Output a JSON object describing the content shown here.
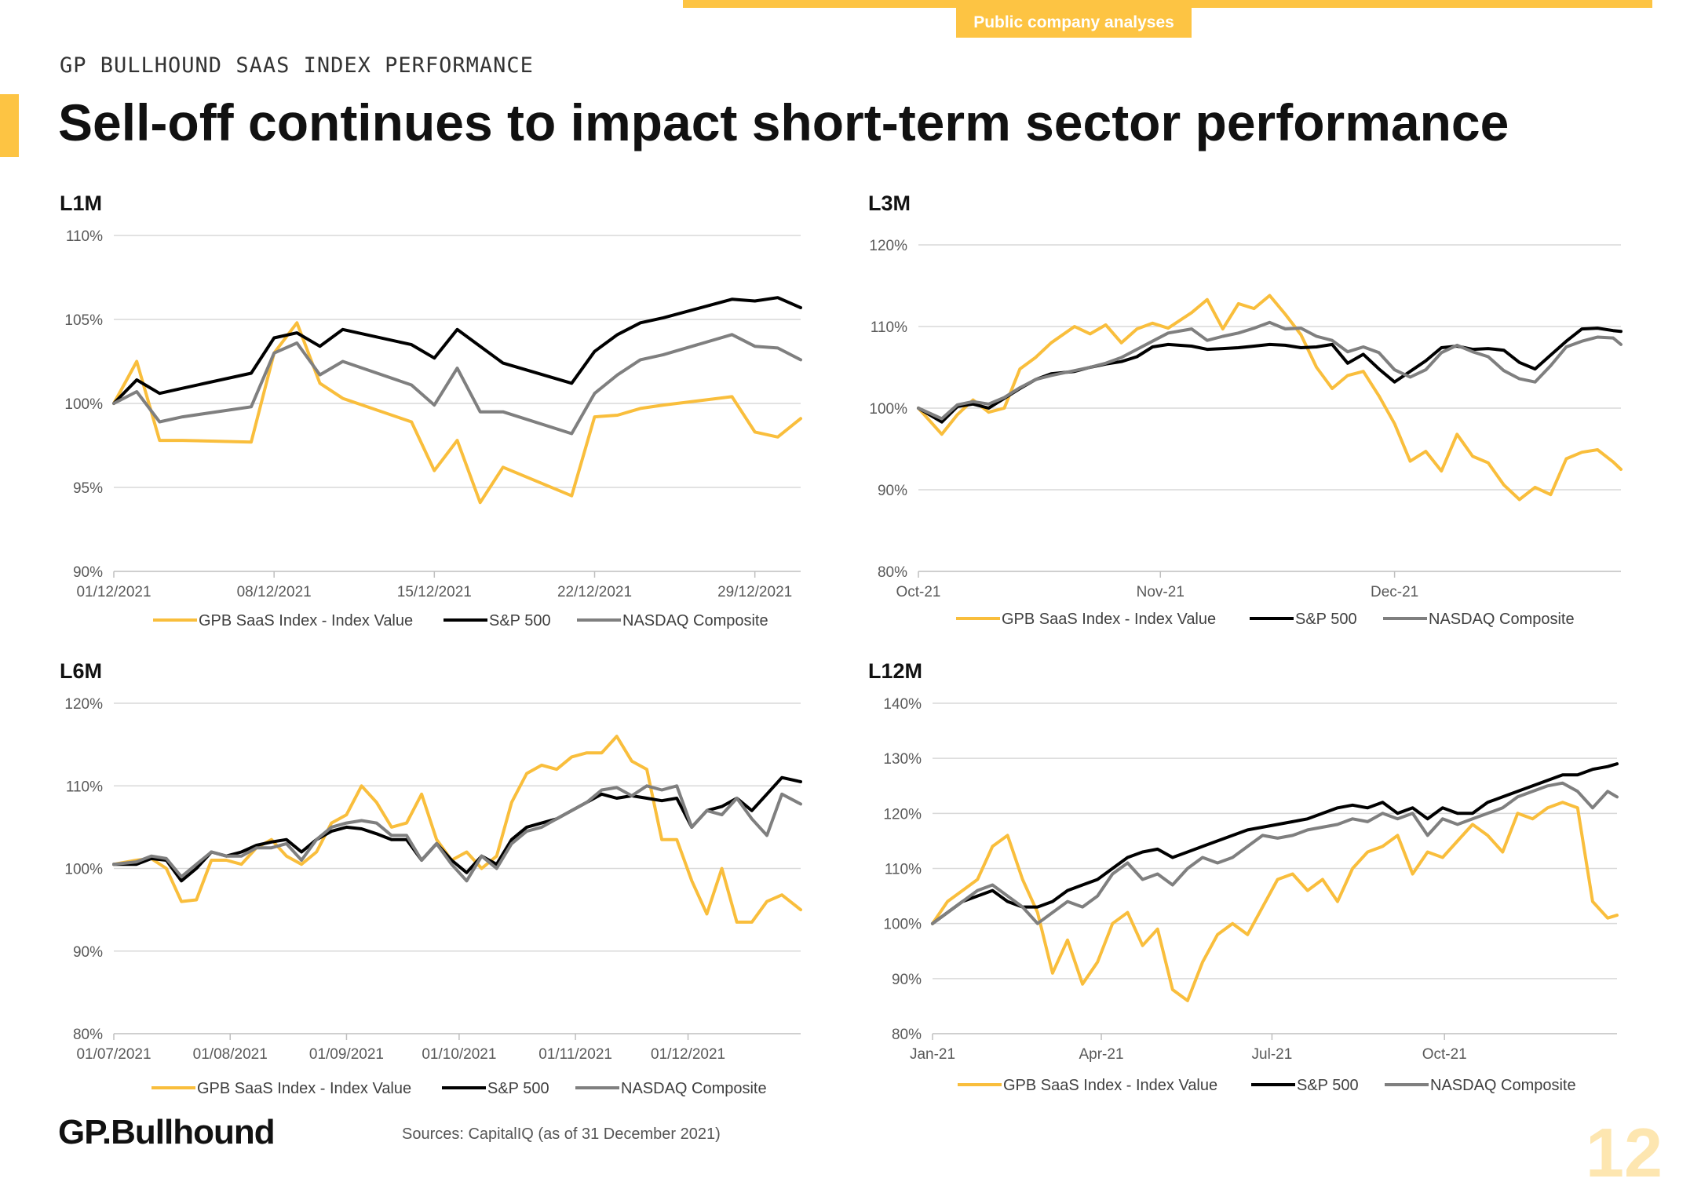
{
  "header": {
    "tag": "Public company analyses",
    "supertitle": "GP BULLHOUND SAAS INDEX PERFORMANCE",
    "title": "Sell-off continues to impact short-term sector performance"
  },
  "colors": {
    "accent": "#FDC443",
    "gpb": "#F9BE3C",
    "sp500": "#000000",
    "nasdaq": "#7F7F7F",
    "grid": "#D9D9D9"
  },
  "legend": [
    "GPB SaaS Index - Index Value",
    "S&P 500",
    "NASDAQ Composite"
  ],
  "chart_data": [
    {
      "label": "L1M",
      "type": "line",
      "ylim": [
        90,
        110
      ],
      "yticks": [
        90,
        95,
        100,
        105,
        110
      ],
      "y_suffix": "%",
      "xlim": [
        0,
        30
      ],
      "xticks": [
        {
          "x": 0,
          "label": "01/12/2021"
        },
        {
          "x": 7,
          "label": "08/12/2021"
        },
        {
          "x": 14,
          "label": "15/12/2021"
        },
        {
          "x": 21,
          "label": "22/12/2021"
        },
        {
          "x": 28,
          "label": "29/12/2021"
        }
      ],
      "x": [
        0,
        1,
        2,
        3,
        6,
        7,
        8,
        9,
        10,
        13,
        14,
        15,
        16,
        17,
        20,
        21,
        22,
        23,
        24,
        27,
        28,
        29,
        30
      ],
      "series": [
        {
          "name": "GPB SaaS Index - Index Value",
          "values": [
            100,
            102.5,
            97.8,
            97.8,
            97.7,
            103,
            104.8,
            101.2,
            100.3,
            98.9,
            96,
            97.8,
            94.1,
            96.2,
            94.5,
            99.2,
            99.3,
            99.7,
            99.9,
            100.4,
            98.3,
            98,
            99.1
          ]
        },
        {
          "name": "S&P 500",
          "values": [
            100,
            101.4,
            100.6,
            100.9,
            101.8,
            103.9,
            104.2,
            103.4,
            104.4,
            103.5,
            102.7,
            104.4,
            103.4,
            102.4,
            101.2,
            103.1,
            104.1,
            104.8,
            105.1,
            106.2,
            106.1,
            106.3,
            105.7
          ]
        },
        {
          "name": "NASDAQ Composite",
          "values": [
            100,
            100.7,
            98.9,
            99.2,
            99.8,
            103,
            103.6,
            101.7,
            102.5,
            101.1,
            99.9,
            102.1,
            99.5,
            99.5,
            98.2,
            100.6,
            101.7,
            102.6,
            102.9,
            104.1,
            103.4,
            103.3,
            102.6
          ]
        }
      ]
    },
    {
      "label": "L3M",
      "type": "line",
      "ylim": [
        80,
        120
      ],
      "yticks": [
        80,
        90,
        100,
        110,
        120
      ],
      "y_suffix": "%",
      "xlim": [
        0,
        90
      ],
      "xticks": [
        {
          "x": 0,
          "label": "Oct-21"
        },
        {
          "x": 31,
          "label": "Nov-21"
        },
        {
          "x": 61,
          "label": "Dec-21"
        }
      ],
      "x": [
        0,
        3,
        5,
        7,
        9,
        11,
        13,
        15,
        17,
        20,
        22,
        24,
        26,
        28,
        30,
        32,
        35,
        37,
        39,
        41,
        43,
        45,
        47,
        49,
        51,
        53,
        55,
        57,
        59,
        61,
        63,
        65,
        67,
        69,
        71,
        73,
        75,
        77,
        79,
        81,
        83,
        85,
        87,
        89,
        90
      ],
      "series": [
        {
          "name": "GPB SaaS Index - Index Value",
          "values": [
            100,
            96.8,
            99.2,
            101,
            99.5,
            100,
            104.8,
            106.2,
            108,
            110,
            109.1,
            110.2,
            108,
            109.7,
            110.4,
            109.8,
            111.7,
            113.3,
            109.7,
            112.8,
            112.2,
            113.8,
            111.5,
            109,
            105,
            102.4,
            104,
            104.5,
            101.5,
            98.1,
            93.5,
            94.7,
            92.3,
            96.8,
            94.1,
            93.3,
            90.6,
            88.8,
            90.3,
            89.4,
            93.8,
            94.6,
            94.9,
            93.4,
            92.5
          ]
        },
        {
          "name": "S&P 500",
          "values": [
            100,
            98.3,
            100.2,
            100.5,
            100,
            101.2,
            102.4,
            103.5,
            104.2,
            104.5,
            105,
            105.4,
            105.7,
            106.3,
            107.5,
            107.8,
            107.6,
            107.2,
            107.3,
            107.4,
            107.6,
            107.8,
            107.7,
            107.4,
            107.5,
            107.8,
            105.5,
            106.6,
            104.8,
            103.2,
            104.5,
            105.8,
            107.4,
            107.6,
            107.2,
            107.3,
            107.1,
            105.6,
            104.8,
            106.5,
            108.2,
            109.7,
            109.8,
            109.5,
            109.4
          ]
        },
        {
          "name": "NASDAQ Composite",
          "values": [
            100,
            98.7,
            100.4,
            100.8,
            100.5,
            101.3,
            102.5,
            103.5,
            104,
            104.6,
            105,
            105.5,
            106.2,
            107.2,
            108.2,
            109.2,
            109.7,
            108.3,
            108.8,
            109.2,
            109.8,
            110.5,
            109.7,
            109.8,
            108.8,
            108.3,
            106.9,
            107.5,
            106.8,
            104.7,
            103.8,
            104.7,
            106.8,
            107.7,
            106.9,
            106.3,
            104.6,
            103.6,
            103.2,
            105.2,
            107.5,
            108.2,
            108.7,
            108.6,
            107.8
          ]
        }
      ]
    },
    {
      "label": "L6M",
      "type": "line",
      "ylim": [
        80,
        120
      ],
      "yticks": [
        80,
        90,
        100,
        110,
        120
      ],
      "y_suffix": "%",
      "xlim": [
        0,
        183
      ],
      "xticks": [
        {
          "x": 0,
          "label": "01/07/2021"
        },
        {
          "x": 31,
          "label": "01/08/2021"
        },
        {
          "x": 62,
          "label": "01/09/2021"
        },
        {
          "x": 92,
          "label": "01/10/2021"
        },
        {
          "x": 123,
          "label": "01/11/2021"
        },
        {
          "x": 153,
          "label": "01/12/2021"
        }
      ],
      "x": [
        0,
        6,
        10,
        14,
        18,
        22,
        26,
        30,
        34,
        38,
        42,
        46,
        50,
        54,
        58,
        62,
        66,
        70,
        74,
        78,
        82,
        86,
        90,
        94,
        98,
        102,
        106,
        110,
        114,
        118,
        122,
        126,
        130,
        134,
        138,
        142,
        146,
        150,
        154,
        158,
        162,
        166,
        170,
        174,
        178,
        183
      ],
      "series": [
        {
          "name": "GPB SaaS Index - Index Value",
          "values": [
            100.5,
            101,
            101.2,
            100,
            96,
            96.2,
            101,
            101,
            100.5,
            102.5,
            103.5,
            101.5,
            100.5,
            102,
            105.5,
            106.5,
            110,
            108,
            105,
            105.5,
            109,
            103.5,
            101,
            102,
            100,
            101.5,
            108,
            111.5,
            112.5,
            112,
            113.5,
            114,
            114,
            116,
            113,
            112,
            103.5,
            103.5,
            98.5,
            94.5,
            100,
            93.5,
            93.5,
            96,
            96.8,
            95
          ]
        },
        {
          "name": "S&P 500",
          "values": [
            100.5,
            100.5,
            101.2,
            101,
            98.5,
            100,
            102,
            101.5,
            102,
            102.8,
            103.2,
            103.5,
            102,
            103.5,
            104.5,
            105,
            104.8,
            104.2,
            103.5,
            103.5,
            101,
            103,
            101,
            99.5,
            101.5,
            100.5,
            103.5,
            105,
            105.5,
            106,
            107,
            108,
            109,
            108.5,
            108.8,
            108.5,
            108.2,
            108.5,
            105,
            107,
            107.5,
            108.5,
            107,
            109,
            111,
            110.5
          ]
        },
        {
          "name": "NASDAQ Composite",
          "values": [
            100.5,
            100.8,
            101.5,
            101.2,
            99,
            100.5,
            102,
            101.5,
            101.5,
            102.5,
            102.5,
            103,
            101,
            103.5,
            105,
            105.5,
            105.8,
            105.5,
            104,
            104,
            101,
            103,
            100.5,
            98.5,
            101.5,
            100,
            103,
            104.5,
            105,
            106,
            107,
            108,
            109.5,
            109.8,
            108.8,
            110,
            109.5,
            110,
            105,
            107,
            106.5,
            108.5,
            106,
            104,
            109,
            107.8
          ]
        }
      ]
    },
    {
      "label": "L12M",
      "type": "line",
      "ylim": [
        80,
        140
      ],
      "yticks": [
        80,
        90,
        100,
        110,
        120,
        130,
        140
      ],
      "y_suffix": "%",
      "xlim": [
        0,
        365
      ],
      "xticks": [
        {
          "x": 0,
          "label": "Jan-21"
        },
        {
          "x": 90,
          "label": "Apr-21"
        },
        {
          "x": 181,
          "label": "Jul-21"
        },
        {
          "x": 273,
          "label": "Oct-21"
        }
      ],
      "x": [
        0,
        8,
        16,
        24,
        32,
        40,
        48,
        56,
        64,
        72,
        80,
        88,
        96,
        104,
        112,
        120,
        128,
        136,
        144,
        152,
        160,
        168,
        176,
        184,
        192,
        200,
        208,
        216,
        224,
        232,
        240,
        248,
        256,
        264,
        272,
        280,
        288,
        296,
        304,
        312,
        320,
        328,
        336,
        344,
        352,
        360,
        365
      ],
      "series": [
        {
          "name": "GPB SaaS Index - Index Value",
          "values": [
            100,
            104,
            106,
            108,
            114,
            116,
            108,
            102,
            91,
            97,
            89,
            93,
            100,
            102,
            96,
            99,
            88,
            86,
            93,
            98,
            100,
            98,
            103,
            108,
            109,
            106,
            108,
            104,
            110,
            113,
            114,
            116,
            109,
            113,
            112,
            115,
            118,
            116,
            113,
            120,
            119,
            121,
            122,
            121,
            104,
            101,
            101.5
          ]
        },
        {
          "name": "S&P 500",
          "values": [
            100,
            102,
            104,
            105,
            106,
            104,
            103,
            103,
            104,
            106,
            107,
            108,
            110,
            112,
            113,
            113.5,
            112,
            113,
            114,
            115,
            116,
            117,
            117.5,
            118,
            118.5,
            119,
            120,
            121,
            121.5,
            121,
            122,
            120,
            121,
            119,
            121,
            120,
            120,
            122,
            123,
            124,
            125,
            126,
            127,
            127,
            128,
            128.5,
            129
          ]
        },
        {
          "name": "NASDAQ Composite",
          "values": [
            100,
            102,
            104,
            106,
            107,
            105,
            103,
            100,
            102,
            104,
            103,
            105,
            109,
            111,
            108,
            109,
            107,
            110,
            112,
            111,
            112,
            114,
            116,
            115.5,
            116,
            117,
            117.5,
            118,
            119,
            118.5,
            120,
            119,
            120,
            116,
            119,
            118,
            119,
            120,
            121,
            123,
            124,
            125,
            125.5,
            124,
            121,
            124,
            123
          ]
        }
      ]
    }
  ],
  "footer": {
    "logo": "GP.Bullhound",
    "sources": "Sources: CapitalIQ (as of 31 December 2021)",
    "page": "12"
  }
}
